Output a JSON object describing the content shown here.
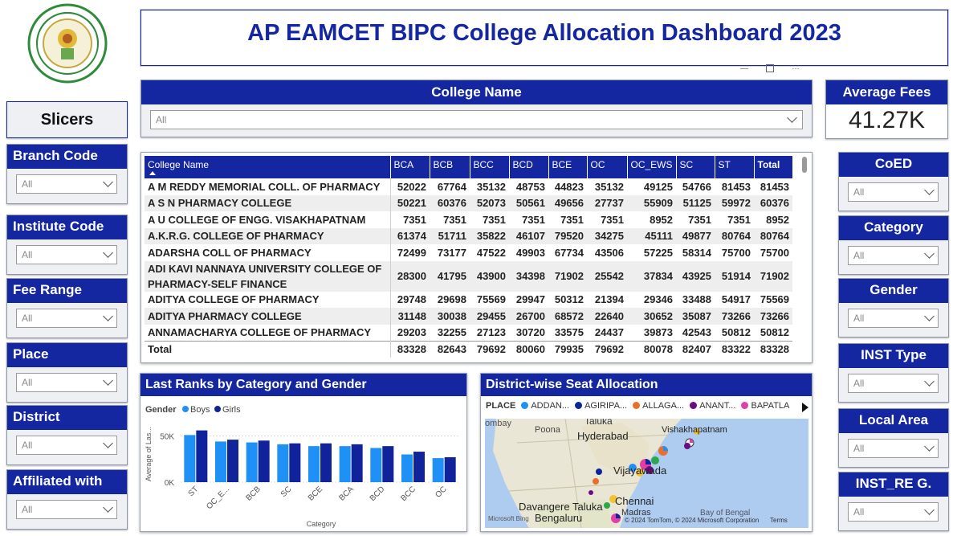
{
  "title": "AP EAMCET BIPC College Allocation Dashboard 2023",
  "colors": {
    "navy": "#1426a0",
    "boys": "#1f90f5",
    "girls": "#10239a"
  },
  "left_slicers": {
    "header": "Slicers",
    "items": [
      {
        "label": "Branch Code",
        "value": "All"
      },
      {
        "label": "Institute Code",
        "value": "All"
      },
      {
        "label": "Fee Range",
        "value": "All"
      },
      {
        "label": "Place",
        "value": "All"
      },
      {
        "label": "District",
        "value": "All"
      },
      {
        "label": "Affiliated with",
        "value": "All"
      }
    ]
  },
  "right_slicers": {
    "items": [
      {
        "label": "CoED",
        "value": "All"
      },
      {
        "label": "Category",
        "value": "All"
      },
      {
        "label": "Gender",
        "value": "All"
      },
      {
        "label": "INST Type",
        "value": "All"
      },
      {
        "label": "Local Area",
        "value": "All"
      },
      {
        "label": "INST_RE G.",
        "value": "All"
      }
    ]
  },
  "college_slicer": {
    "label": "College Name",
    "value": "All"
  },
  "avg_fees": {
    "label": "Average Fees",
    "value": "41.27K"
  },
  "table": {
    "columns": [
      "College Name",
      "BCA",
      "BCB",
      "BCC",
      "BCD",
      "BCE",
      "OC",
      "OC_EWS",
      "SC",
      "ST",
      "Total"
    ],
    "rows": [
      [
        "A M REDDY MEMORIAL COLL. OF PHARMACY",
        "52022",
        "67764",
        "35132",
        "48753",
        "44823",
        "35132",
        "49125",
        "54766",
        "81453",
        "81453"
      ],
      [
        "A S N PHARMACY COLLEGE",
        "50221",
        "60376",
        "52073",
        "50561",
        "49656",
        "27737",
        "55909",
        "51125",
        "59972",
        "60376"
      ],
      [
        "A U COLLEGE OF ENGG. VISAKHAPATNAM",
        "7351",
        "7351",
        "7351",
        "7351",
        "7351",
        "7351",
        "8952",
        "7351",
        "7351",
        "8952"
      ],
      [
        "A.K.R.G. COLLEGE OF PHARMACY",
        "61374",
        "51711",
        "35822",
        "46107",
        "79520",
        "34275",
        "45111",
        "49877",
        "80764",
        "80764"
      ],
      [
        "ADARSHA COLL OF PHARMACY",
        "72499",
        "73177",
        "47522",
        "49903",
        "67734",
        "43506",
        "57225",
        "58314",
        "75700",
        "75700"
      ],
      [
        "ADI KAVI NANNAYA UNIVERSITY COLLEGE OF PHARMACY-SELF FINANCE",
        "28300",
        "41795",
        "43900",
        "34398",
        "71902",
        "25542",
        "37834",
        "43925",
        "51914",
        "71902"
      ],
      [
        "ADITYA COLLEGE OF PHARMACY",
        "29748",
        "29698",
        "75569",
        "29947",
        "50312",
        "21394",
        "29346",
        "33488",
        "54917",
        "75569"
      ],
      [
        "ADITYA PHARMACY COLLEGE",
        "31148",
        "30038",
        "29455",
        "26700",
        "68572",
        "22640",
        "30652",
        "35087",
        "73266",
        "73266"
      ],
      [
        "ANNAMACHARYA COLLEGE OF PHARMACY",
        "29203",
        "32255",
        "27123",
        "30720",
        "33575",
        "24437",
        "39873",
        "42543",
        "50812",
        "50812"
      ]
    ],
    "total": [
      "Total",
      "83328",
      "82643",
      "79692",
      "80060",
      "79935",
      "79692",
      "80078",
      "82407",
      "83322",
      "83328"
    ]
  },
  "bar_panel": {
    "title": "Last Ranks by Category and Gender"
  },
  "chart_data": {
    "type": "bar",
    "title": "Last Ranks by Category and Gender",
    "xlabel": "Category",
    "ylabel": "Average of Las...",
    "legend_title": "Gender",
    "categories": [
      "ST",
      "OC_E...",
      "BCB",
      "SC",
      "BCE",
      "BCA",
      "BCD",
      "BCC",
      "OC"
    ],
    "series": [
      {
        "name": "Boys",
        "values": [
          51000,
          44000,
          43000,
          41000,
          39000,
          39000,
          37000,
          30000,
          26000
        ]
      },
      {
        "name": "Girls",
        "values": [
          56000,
          46000,
          45000,
          42000,
          42000,
          41000,
          39000,
          33000,
          27000
        ]
      }
    ],
    "yticks": [
      "50K",
      "0K"
    ],
    "ylim": [
      0,
      60000
    ],
    "legend": "top-left"
  },
  "map_panel": {
    "title": "District-wise Seat Allocation",
    "legend_title": "PLACE",
    "legend": [
      {
        "name": "ADDAN...",
        "color": "#1f90f5"
      },
      {
        "name": "AGIRIPA...",
        "color": "#10239a"
      },
      {
        "name": "ALLAGA...",
        "color": "#e8702a"
      },
      {
        "name": "ANANT...",
        "color": "#6a0d83"
      },
      {
        "name": "BAPATLA",
        "color": "#e23fa5"
      }
    ],
    "labels": [
      "ombay",
      "Taluka",
      "Poona",
      "Hyderabad",
      "Vishakhapatnam",
      "Vijayawada",
      "Chennai",
      "Davangere Taluka",
      "Bengaluru",
      "Madras",
      "Bay of Bengal"
    ],
    "attribution": "© 2024 TomTom, © 2024 Microsoft Corporation",
    "terms": "Terms",
    "bing": "Microsoft Bing"
  }
}
